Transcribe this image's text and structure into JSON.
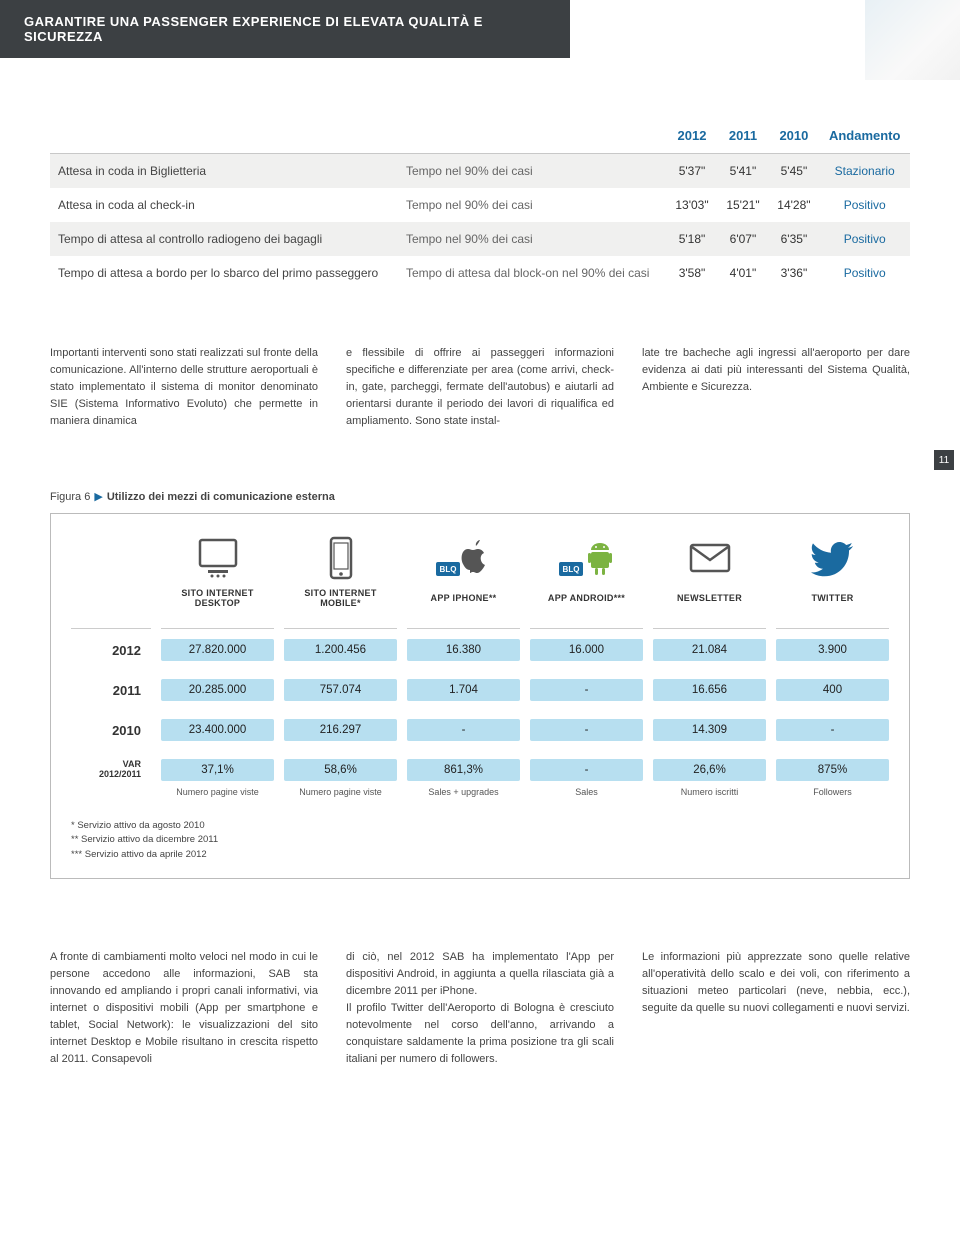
{
  "colors": {
    "header_bg": "#3c4043",
    "accent_blue": "#1a6aa0",
    "pill_bg": "#b7dff0",
    "row_alt": "#f0f0ef"
  },
  "page_number": "11",
  "title": "GARANTIRE UNA PASSENGER EXPERIENCE DI ELEVATA QUALITÀ E SICUREZZA",
  "table1": {
    "headers": [
      "",
      "",
      "2012",
      "2011",
      "2010",
      "Andamento"
    ],
    "rows": [
      [
        "Attesa in coda in Biglietteria",
        "Tempo nel 90% dei casi",
        "5'37\"",
        "5'41\"",
        "5'45\"",
        "Stazionario"
      ],
      [
        "Attesa in coda al check-in",
        "Tempo nel 90% dei casi",
        "13'03\"",
        "15'21\"",
        "14'28\"",
        "Positivo"
      ],
      [
        "Tempo di attesa al controllo radiogeno dei bagagli",
        "Tempo nel 90% dei casi",
        "5'18\"",
        "6'07\"",
        "6'35\"",
        "Positivo"
      ],
      [
        "Tempo di attesa a bordo per lo sbarco del primo passeggero",
        "Tempo di attesa dal block-on nel 90% dei casi",
        "3'58\"",
        "4'01\"",
        "3'36\"",
        "Positivo"
      ]
    ]
  },
  "para": {
    "c1": "Importanti interventi sono stati realizzati sul fronte della comunicazione. All'interno delle strutture aeroportuali è stato implementato il sistema di monitor denominato SIE (Sistema Informativo Evoluto) che permette in maniera dinamica",
    "c2": "e flessibile di offrire ai passeggeri informazioni specifiche e differenziate per area (come arrivi, check-in, gate, parcheggi, fermate dell'autobus) e aiutarli ad orientarsi durante il periodo dei lavori di riqualifica ed ampliamento. Sono state instal-",
    "c3": "late tre bacheche agli ingressi all'aeroporto per dare evidenza ai dati più interessanti del Sistema Qualità, Ambiente e Sicurezza."
  },
  "fig": {
    "pre": "Figura 6",
    "title": "Utilizzo dei mezzi di comunicazione esterna",
    "channels": [
      "SITO INTERNET DESKTOP",
      "SITO INTERNET MOBILE*",
      "APP IPHONE**",
      "APP ANDROID***",
      "NEWSLETTER",
      "TWITTER"
    ],
    "years": [
      "2012",
      "2011",
      "2010"
    ],
    "var_label_top": "VAR",
    "var_label_bottom": "2012/2011",
    "data": {
      "2012": [
        "27.820.000",
        "1.200.456",
        "16.380",
        "16.000",
        "21.084",
        "3.900"
      ],
      "2011": [
        "20.285.000",
        "757.074",
        "1.704",
        "-",
        "16.656",
        "400"
      ],
      "2010": [
        "23.400.000",
        "216.297",
        "-",
        "-",
        "14.309",
        "-"
      ],
      "var": [
        "37,1%",
        "58,6%",
        "861,3%",
        "-",
        "26,6%",
        "875%"
      ]
    },
    "subs": [
      "Numero pagine viste",
      "Numero pagine viste",
      "Sales + upgrades",
      "Sales",
      "Numero iscritti",
      "Followers"
    ],
    "notes": [
      "* Servizio attivo da agosto 2010",
      "** Servizio attivo da dicembre 2011",
      "*** Servizio attivo da aprile 2012"
    ]
  },
  "para2": {
    "c1": "A fronte di cambiamenti molto veloci nel modo in cui le persone accedono alle informazioni, SAB sta innovando ed ampliando i propri canali informativi, via internet o dispositivi mobili (App per smartphone e tablet, Social Network): le visualizzazioni del sito internet Desktop e Mobile risultano in crescita rispetto al 2011. Consapevoli",
    "c2": "di ciò, nel 2012 SAB ha implementato l'App per dispositivi Android, in aggiunta a quella rilasciata già a dicembre 2011 per iPhone.\nIl profilo Twitter dell'Aeroporto di Bologna è cresciuto notevolmente nel corso dell'anno, arrivando a conquistare saldamente la prima posizione tra gli scali italiani per numero di followers.",
    "c3": "Le informazioni più apprezzate sono quelle relative all'operatività dello scalo e dei voli, con riferimento a situazioni meteo particolari (neve, nebbia, ecc.), seguite da quelle su nuovi collegamenti e nuovi servizi."
  }
}
